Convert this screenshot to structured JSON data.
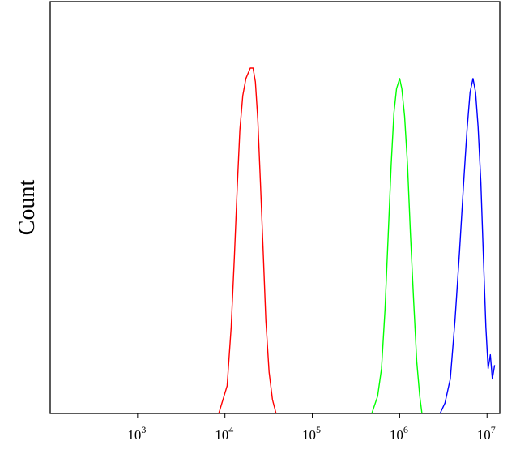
{
  "chart_data": {
    "type": "line",
    "title": "",
    "xlabel": "",
    "ylabel": "Count",
    "x_scale": "log",
    "xlim": [
      100,
      14000000
    ],
    "ylim": [
      0,
      100
    ],
    "grid": false,
    "legend": "none",
    "x_ticks": [
      {
        "value": 1000,
        "base": "10",
        "exp": "3"
      },
      {
        "value": 10000,
        "base": "10",
        "exp": "4"
      },
      {
        "value": 100000,
        "base": "10",
        "exp": "5"
      },
      {
        "value": 1000000,
        "base": "10",
        "exp": "6"
      },
      {
        "value": 10000000,
        "base": "10",
        "exp": "7"
      }
    ],
    "series": [
      {
        "color": "#ff0000",
        "points": [
          [
            8500,
            0
          ],
          [
            10600,
            8
          ],
          [
            11800,
            25
          ],
          [
            12800,
            45
          ],
          [
            13800,
            65
          ],
          [
            14800,
            82
          ],
          [
            16000,
            92
          ],
          [
            17400,
            97
          ],
          [
            19500,
            100
          ],
          [
            21000,
            100
          ],
          [
            22300,
            96
          ],
          [
            23800,
            85
          ],
          [
            25500,
            67
          ],
          [
            27400,
            47
          ],
          [
            29400,
            27
          ],
          [
            32000,
            12
          ],
          [
            35000,
            4
          ],
          [
            38500,
            0
          ]
        ]
      },
      {
        "color": "#00ff00",
        "points": [
          [
            480000,
            0
          ],
          [
            560000,
            5
          ],
          [
            620000,
            13
          ],
          [
            680000,
            30
          ],
          [
            740000,
            52
          ],
          [
            800000,
            72
          ],
          [
            860000,
            87
          ],
          [
            920000,
            94
          ],
          [
            1000000,
            97
          ],
          [
            1060000,
            94
          ],
          [
            1140000,
            86
          ],
          [
            1230000,
            72
          ],
          [
            1330000,
            52
          ],
          [
            1450000,
            32
          ],
          [
            1570000,
            15
          ],
          [
            1700000,
            5
          ],
          [
            1800000,
            0
          ]
        ]
      },
      {
        "color": "#0000ff",
        "points": [
          [
            2900000,
            0
          ],
          [
            3300000,
            3
          ],
          [
            3800000,
            10
          ],
          [
            4300000,
            27
          ],
          [
            4850000,
            47
          ],
          [
            5400000,
            67
          ],
          [
            5900000,
            82
          ],
          [
            6400000,
            93
          ],
          [
            6900000,
            97
          ],
          [
            7400000,
            93
          ],
          [
            7900000,
            83
          ],
          [
            8500000,
            67
          ],
          [
            9100000,
            45
          ],
          [
            9700000,
            25
          ],
          [
            10300000,
            13
          ],
          [
            10900000,
            17
          ],
          [
            11500000,
            10
          ],
          [
            12200000,
            14
          ]
        ]
      }
    ]
  }
}
